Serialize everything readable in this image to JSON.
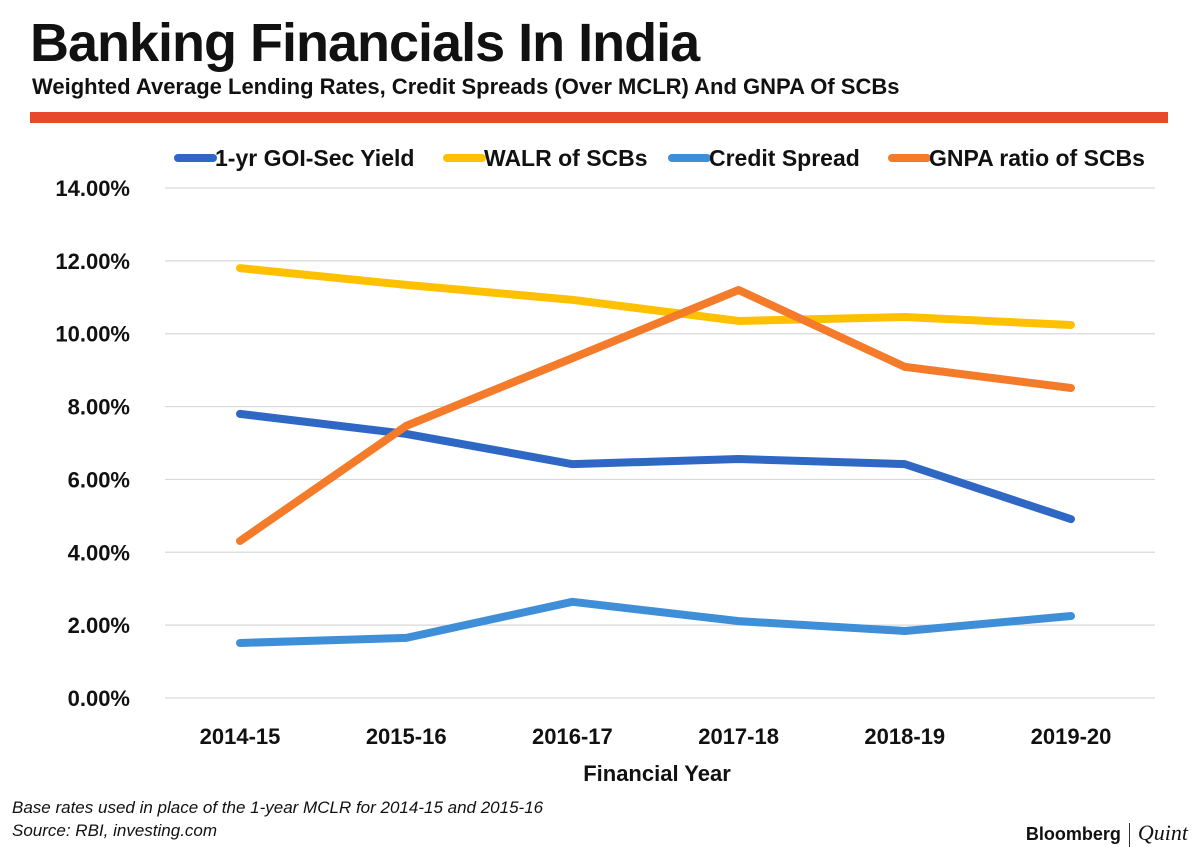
{
  "header": {
    "title": "Banking Financials In India",
    "subtitle": "Weighted Average Lending Rates, Credit Spreads (Over MCLR) And GNPA Of SCBs"
  },
  "footer": {
    "note": "Base rates used in place of the 1-year MCLR for 2014-15 and 2015-16",
    "source": "Source: RBI, investing.com",
    "logo_brand": "Bloomberg",
    "logo_sub": "Quint"
  },
  "chart_data": {
    "type": "line",
    "title": "",
    "xlabel": "Financial Year",
    "ylabel": "",
    "ylim": [
      0,
      14
    ],
    "yticks": [
      0,
      2,
      4,
      6,
      8,
      10,
      12,
      14
    ],
    "ytick_labels": [
      "0.00%",
      "2.00%",
      "4.00%",
      "6.00%",
      "8.00%",
      "10.00%",
      "12.00%",
      "14.00%"
    ],
    "grid": true,
    "legend": "top",
    "categories": [
      "2014-15",
      "2015-16",
      "2016-17",
      "2017-18",
      "2018-19",
      "2019-20"
    ],
    "series": [
      {
        "name": "1-yr GOI-Sec Yield",
        "color": "#2f67c4",
        "values": [
          7.8,
          7.25,
          6.42,
          6.56,
          6.42,
          4.91
        ]
      },
      {
        "name": "WALR of SCBs",
        "color": "#ffc000",
        "values": [
          11.8,
          11.34,
          10.93,
          10.35,
          10.46,
          10.24
        ]
      },
      {
        "name": "Credit Spread",
        "color": "#3e8fd8",
        "values": [
          1.51,
          1.65,
          2.64,
          2.11,
          1.84,
          2.25
        ]
      },
      {
        "name": "GNPA ratio of SCBs",
        "color": "#f47b2a",
        "values": [
          4.31,
          7.47,
          9.33,
          11.2,
          9.09,
          8.51
        ]
      }
    ]
  }
}
